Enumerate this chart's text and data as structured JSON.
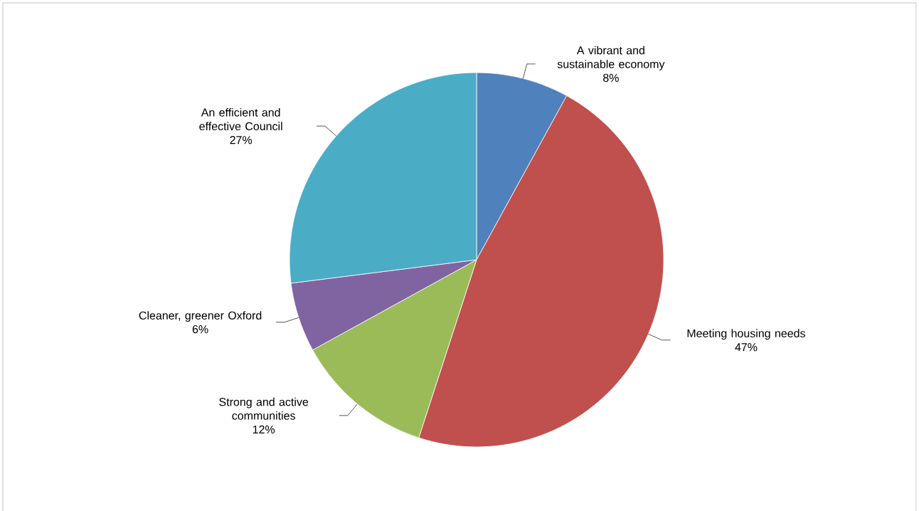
{
  "chart_data": {
    "type": "pie",
    "categories": [
      "A vibrant and sustainable economy",
      "Meeting housing needs",
      "Strong and active communities",
      "Cleaner, greener Oxford",
      "An efficient and effective Council"
    ],
    "values": [
      8,
      47,
      12,
      6,
      27
    ],
    "colors": [
      "#4f81bd",
      "#c0504d",
      "#9bbb59",
      "#8064a2",
      "#4bacc6"
    ],
    "value_labels": [
      "8%",
      "47%",
      "12%",
      "6%",
      "27%"
    ]
  }
}
